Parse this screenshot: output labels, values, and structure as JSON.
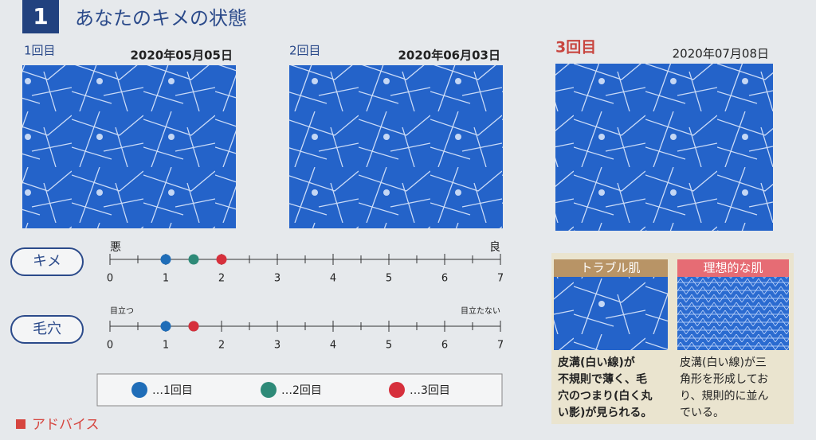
{
  "header": {
    "number": "1",
    "title": "あなたのキメの状態"
  },
  "sessions": [
    {
      "label": "1回目",
      "date": "2020年05月05日"
    },
    {
      "label": "2回目",
      "date": "2020年06月03日"
    },
    {
      "label": "3回目",
      "date": "2020年07月08日"
    }
  ],
  "chart_data": [
    {
      "type": "dot",
      "label": "キメ",
      "low_label": "悪",
      "high_label": "良",
      "xlim": [
        0,
        7
      ],
      "xticks": [
        0,
        1,
        2,
        3,
        4,
        5,
        6,
        7
      ],
      "series": [
        {
          "name": "…1回目",
          "color": "#1f6db8",
          "values": [
            1
          ]
        },
        {
          "name": "…2回目",
          "color": "#2e8a78",
          "values": [
            1.5
          ]
        },
        {
          "name": "…3回目",
          "color": "#d6303c",
          "values": [
            2
          ]
        }
      ]
    },
    {
      "type": "dot",
      "label": "毛穴",
      "low_label": "目立つ",
      "high_label": "目立たない",
      "xlim": [
        0,
        7
      ],
      "xticks": [
        0,
        1,
        2,
        3,
        4,
        5,
        6,
        7
      ],
      "series": [
        {
          "name": "…1回目",
          "color": "#1f6db8",
          "values": [
            1
          ]
        },
        {
          "name": "…2回目",
          "color": "#2e8a78",
          "values": [
            1.5
          ]
        },
        {
          "name": "…3回目",
          "color": "#d6303c",
          "values": [
            1.5
          ]
        }
      ]
    }
  ],
  "comparison": [
    {
      "title": "トラブル肌",
      "text": [
        "皮溝(白い線)が",
        "不規則で薄く、毛",
        "穴のつまり(白く丸",
        "い影)が見られる。"
      ]
    },
    {
      "title": "理想的な肌",
      "text": [
        "皮溝(白い線)が三",
        "角形を形成してお",
        "り、規則的に並ん",
        "でいる。"
      ]
    }
  ],
  "advice": "アドバイス"
}
